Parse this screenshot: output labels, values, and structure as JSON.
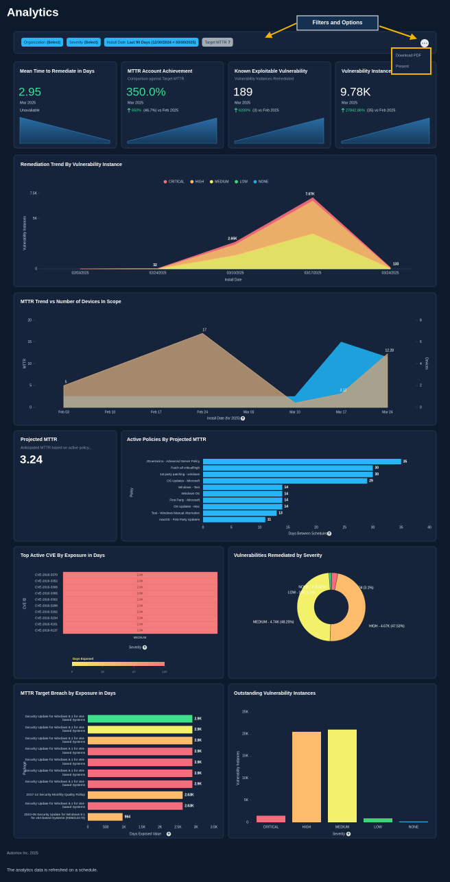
{
  "header": {
    "title": "Analytics"
  },
  "filters": {
    "chips": [
      {
        "name": "Organization",
        "value": "(Select)"
      },
      {
        "name": "Severity",
        "value": "(Select)"
      },
      {
        "name": "Install Date",
        "value": "Last 90 Days (12/30/2024 < 03/30/2025)"
      },
      {
        "name": "Target MTTR",
        "value": 7
      }
    ]
  },
  "annotation": "Filters and Options",
  "menu": [
    "Download PDF",
    "Present"
  ],
  "kpis": [
    {
      "title": "Mean Time to Remediate in Days",
      "value": 2.95,
      "color": "#3ddc97",
      "period": "Mar 2025",
      "note": "Unavailable"
    },
    {
      "title": "MTTR Account Achievement",
      "subtitle": "Comparison against Target MTTR",
      "value": {
        "value": 350,
        "label": "350.0%"
      },
      "color": "#3ddc97",
      "period": "Mar 2025",
      "change": {
        "value": 650,
        "label": "650%"
      },
      "note": "(46.7%) vs Feb 2025"
    },
    {
      "title": "Known Exploitable Vulnerability",
      "subtitle": "Vulnerability Instances Remediated",
      "value": 189,
      "color": "#ffffff",
      "period": "Mar 2025",
      "change": {
        "value": 6200,
        "label": "6200%"
      },
      "note": "(3) vs Feb 2025"
    },
    {
      "title": "Vulnerability Instances",
      "value": {
        "value": 9780,
        "label": "9.78K"
      },
      "color": "#ffffff",
      "period": "Mar 2025",
      "change": {
        "value": 27842.86,
        "label": "27842.86%"
      },
      "note": "(35) vs Feb 2025"
    }
  ],
  "remediation_trend": {
    "type": "area",
    "stacked": true,
    "legend": "top",
    "title": "Remediation Trend By Vulnerability Instance",
    "x_label": "Install Date",
    "y_label": "Vulnerability Instances",
    "categories": [
      "02/03/2025",
      "02/24/2025",
      "03/10/2025",
      "03/17/2025",
      "03/24/2025"
    ],
    "series": [
      {
        "name": "CRITICAL",
        "color": "#f46d7c",
        "values": [
          0,
          2,
          200,
          270,
          13
        ]
      },
      {
        "name": "HIGH",
        "color": "#fdbb6c",
        "values": [
          0,
          20,
          1100,
          3300,
          60
        ]
      },
      {
        "name": "MEDIUM",
        "color": "#f3f06a",
        "values": [
          0,
          10,
          1350,
          3500,
          60
        ]
      },
      {
        "name": "LOW",
        "color": "#3fd67a",
        "values": [
          0,
          0,
          0,
          0,
          0
        ]
      },
      {
        "name": "NONE",
        "color": "#2aa8e0",
        "values": [
          0,
          0,
          0,
          0,
          0
        ]
      }
    ],
    "totals": {
      "values": [
        0,
        32,
        2650,
        7070,
        133
      ],
      "value_labels": [
        null,
        "32",
        "2.65K",
        "7.07K",
        "133"
      ]
    },
    "ylim": [
      0,
      7500
    ],
    "yticks": [
      0,
      {
        "value": 5000,
        "label": "5K"
      },
      {
        "value": 7500,
        "label": "7.5K"
      }
    ]
  },
  "mttr_trend": {
    "type": "area",
    "title": "MTTR Trend vs Number of Devices In Scope",
    "x_label": "Install Date (for 2025)",
    "y_label": "MTTR",
    "y2_label": "Devices",
    "categories": [
      "Feb 03",
      "Feb 10",
      "Feb 17",
      "Feb 24",
      "Mar 03",
      "Mar 10",
      "Mar 17",
      "Mar 24"
    ],
    "series": [
      {
        "color": "#1ea0dc",
        "axis": "y2",
        "values": [
          1,
          1,
          1,
          1,
          1,
          1,
          6,
          4.6
        ]
      },
      {
        "color": "#c9a27a",
        "values": [
          5,
          9,
          13,
          17,
          9,
          1,
          3.12,
          12.28
        ],
        "value_labels": [
          "5",
          null,
          null,
          "17",
          null,
          null,
          "3.12",
          "12.28"
        ]
      }
    ],
    "ylim": [
      0,
      20
    ],
    "yticks": [
      0,
      5,
      10,
      15,
      20
    ],
    "y2lim": [
      0,
      8
    ],
    "y2ticks": [
      0,
      2,
      4,
      6,
      8
    ]
  },
  "projected_mttr": {
    "title": "Projected MTTR",
    "subtitle": "Anticipated MTTR based on active policy...",
    "value": 3.24
  },
  "active_policies": {
    "type": "hbar",
    "title": "Active Policies By Projected MTTR",
    "x_label": "Days Between Schedules",
    "y_label": "Policy",
    "categories": [
      "JGuerracino - Advanced Server Policy",
      "Patch all critical/high",
      "1st party patching - windows",
      "OS Updates - Microsoft",
      "Windows - Test",
      "Windows OS",
      "First Party - Microsoft",
      "OS Updates - Mac",
      "Test - Windows Manual Alternative",
      "macOS - First Party Updates"
    ],
    "values": [
      35,
      30,
      30,
      29,
      14,
      14,
      14,
      14,
      13,
      11
    ],
    "color": "#29b6f6",
    "xlim": [
      0,
      40
    ],
    "xticks": [
      0,
      5,
      10,
      15,
      20,
      25,
      30,
      35,
      40
    ]
  },
  "top_cve": {
    "type": "heatmap",
    "title": "Top Active CVE By Exposure in Days",
    "x_label": "Severity",
    "y_label": "CVE ID",
    "columns": [
      "MEDIUM"
    ],
    "rows": [
      "CVE-2016-3370",
      "CVE-2016-3352",
      "CVE-2016-3306",
      "CVE-2016-3305",
      "CVE-2016-3302",
      "CVE-2016-3298",
      "CVE-2016-3292",
      "CVE-2016-3234",
      "CVE-2016-0161",
      "CVE-2016-0137"
    ],
    "values": [
      [
        2900
      ],
      [
        2900
      ],
      [
        2900
      ],
      [
        2900
      ],
      [
        2900
      ],
      [
        2900
      ],
      [
        2900
      ],
      [
        2900
      ],
      [
        2900
      ],
      [
        2900
      ]
    ],
    "value_labels": [
      [
        "2.9K"
      ],
      [
        "2.9K"
      ],
      [
        "2.9K"
      ],
      [
        "2.9K"
      ],
      [
        "2.9K"
      ],
      [
        "2.9K"
      ],
      [
        "2.9K"
      ],
      [
        "2.9K"
      ],
      [
        "2.9K"
      ],
      [
        "2.9K"
      ]
    ],
    "color": "#f47c7c",
    "legend": {
      "title": "Days Exposed",
      "lim": [
        0,
        100
      ],
      "ticks": [
        0,
        33,
        67,
        100
      ],
      "colors": [
        "#f8e86a",
        "#f47c7c"
      ]
    }
  },
  "severity_remediated": {
    "type": "pie",
    "title": "Vulnerabilities Remediated by Severity",
    "hole": 0.5,
    "labels": [
      "CRITICAL - 304 (3.1%)",
      "HIGH - 4.67K (47.53%)",
      "MEDIUM - 4.74K (48.25%)",
      "LOW - 108 (1.1%)",
      "NONE - 2 (0.02%)"
    ],
    "values": [
      304,
      4670,
      4740,
      108,
      2
    ],
    "colors": [
      "#f46d7c",
      "#fdbb6c",
      "#f3f06a",
      "#3fd67a",
      "#2aa8e0"
    ]
  },
  "target_breach": {
    "type": "hbar",
    "title": "MTTR Target Breach by Exposure in Days",
    "x_label": "Days Exposed Value",
    "y_label": "Package",
    "categories": [
      "Security Update for Windows 8.1 for x64-based Systems",
      "Security Update for Windows 8.1 for x64-based Systems",
      "Security Update for Windows 8.1 for x64-based Systems",
      "Security Update for Windows 8.1 for x64-based Systems",
      "Security Update for Windows 8.1 for x64-based Systems",
      "Security Update for Windows 8.1 for x64-based Systems",
      "Security Update for Windows 8.1 for x64-based Systems",
      "2017-12 Security Monthly Quality Rollup",
      "Security Update for Windows 8.1 for x64-based Systems",
      "2022-08 Security Update for Windows 8.1 for x64-based Systems (KB5012170)"
    ],
    "values": [
      2900,
      2900,
      2900,
      2900,
      2900,
      2900,
      2900,
      2630,
      2630,
      964
    ],
    "value_labels": [
      "2.9K",
      "2.9K",
      "2.9K",
      "2.9K",
      "2.9K",
      "2.9K",
      "2.9K",
      "2.63K",
      "2.63K",
      "964"
    ],
    "colors": [
      "#3ee08a",
      "#f3f06a",
      "#fdbb6c",
      "#f46d7c",
      "#f46d7c",
      "#f46d7c",
      "#f46d7c",
      "#fdbb6c",
      "#f46d7c",
      "#fdbb6c"
    ],
    "xlim": [
      0,
      3500
    ],
    "xticks": [
      0,
      500,
      {
        "value": 1000,
        "label": "1K"
      },
      {
        "value": 1500,
        "label": "1.5K"
      },
      {
        "value": 2000,
        "label": "2K"
      },
      {
        "value": 2500,
        "label": "2.5K"
      },
      {
        "value": 3000,
        "label": "3K"
      },
      {
        "value": 3500,
        "label": "3.5K"
      }
    ]
  },
  "outstanding": {
    "type": "bar",
    "title": "Outstanding Vulnerability Instances",
    "x_label": "Severity",
    "y_label": "Vulnerability Instances",
    "categories": [
      "CRITICAL",
      "HIGH",
      "MEDIUM",
      "LOW",
      "NONE"
    ],
    "values": [
      1500,
      20500,
      21000,
      900,
      200
    ],
    "colors": [
      "#f46d7c",
      "#fdbb6c",
      "#f3f06a",
      "#3fd67a",
      "#2aa8e0"
    ],
    "ylim": [
      0,
      25000
    ],
    "yticks": [
      0,
      {
        "value": 5000,
        "label": "5K"
      },
      {
        "value": 10000,
        "label": "10K"
      },
      {
        "value": 15000,
        "label": "15K"
      },
      {
        "value": 20000,
        "label": "20K"
      },
      {
        "value": 25000,
        "label": "25K"
      }
    ]
  },
  "footer": {
    "company": "Automox Inc. 2025",
    "note": "The analytics data is refreshed on a schedule."
  }
}
